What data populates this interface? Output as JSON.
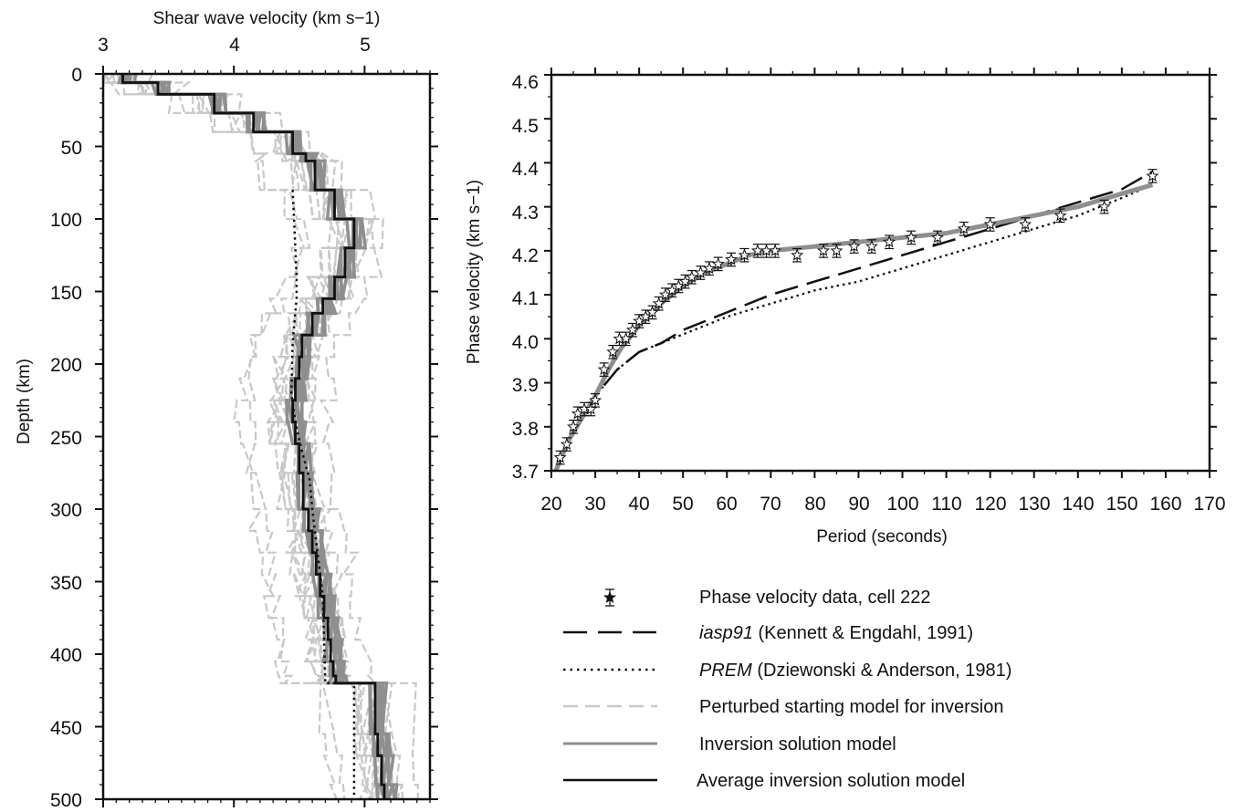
{
  "chart_data": [
    {
      "type": "line",
      "panel": "left",
      "orientation": "depth-profile",
      "xlabel": "Shear wave velocity (km s−1)",
      "ylabel": "Depth (km)",
      "xlim": [
        3,
        5.5
      ],
      "ylim": [
        0,
        500
      ],
      "y_inverted": true,
      "xticks": [
        "3",
        "4",
        "5"
      ],
      "yticks": [
        "0",
        "50",
        "100",
        "150",
        "200",
        "250",
        "300",
        "350",
        "400",
        "450",
        "500"
      ],
      "series": [
        {
          "key": "average",
          "style": "solid-black",
          "x": [
            3.15,
            3.15,
            3.42,
            3.42,
            3.85,
            3.85,
            4.15,
            4.15,
            4.45,
            4.45,
            4.55,
            4.55,
            4.62,
            4.62,
            4.77,
            4.77,
            4.92,
            4.92,
            4.85,
            4.85,
            4.77,
            4.77,
            4.68,
            4.68,
            4.6,
            4.6,
            4.52,
            4.52,
            4.5,
            4.5,
            4.47,
            4.47,
            4.45,
            4.45,
            4.47,
            4.47,
            4.5,
            4.5,
            4.53,
            4.53,
            4.57,
            4.57,
            4.6,
            4.6,
            4.63,
            4.63,
            4.66,
            4.66,
            4.69,
            4.69,
            4.72,
            4.72,
            4.74,
            4.74,
            4.76,
            4.76,
            4.78,
            4.78,
            5.08,
            5.08,
            5.1,
            5.1,
            5.13,
            5.13,
            5.15,
            5.15
          ],
          "y": [
            0,
            6,
            6,
            14,
            14,
            27,
            27,
            40,
            40,
            55,
            55,
            60,
            60,
            80,
            80,
            100,
            100,
            120,
            120,
            140,
            140,
            155,
            155,
            165,
            165,
            180,
            180,
            195,
            195,
            210,
            210,
            225,
            225,
            240,
            240,
            255,
            255,
            275,
            275,
            300,
            300,
            315,
            315,
            330,
            330,
            345,
            345,
            360,
            360,
            375,
            375,
            390,
            390,
            405,
            405,
            415,
            415,
            420,
            420,
            455,
            455,
            470,
            470,
            490,
            490,
            500
          ]
        },
        {
          "key": "prem",
          "style": "dotted-black",
          "x": [
            4.45,
            4.46,
            4.47,
            4.48,
            4.48,
            4.45,
            4.44,
            4.44,
            4.47,
            4.52,
            4.58,
            4.6,
            4.64,
            4.68,
            4.7,
            4.92,
            4.92,
            4.92
          ],
          "y": [
            80,
            100,
            120,
            140,
            155,
            185,
            220,
            220,
            240,
            260,
            280,
            300,
            330,
            360,
            420,
            420,
            460,
            500
          ]
        }
      ]
    },
    {
      "type": "line",
      "panel": "right",
      "xlabel": "Period (seconds)",
      "ylabel": "Phase velocity (km s−1)",
      "xlim": [
        20,
        170
      ],
      "ylim": [
        3.7,
        4.6
      ],
      "xticks": [
        "20",
        "30",
        "40",
        "50",
        "60",
        "70",
        "80",
        "90",
        "100",
        "110",
        "120",
        "130",
        "140",
        "150",
        "160",
        "170"
      ],
      "yticks": [
        "3.7",
        "3.8",
        "3.9",
        "4.0",
        "4.1",
        "4.2",
        "4.3",
        "4.4",
        "4.5",
        "4.6"
      ],
      "series": [
        {
          "key": "data",
          "name": "Phase velocity data, cell 222",
          "x": [
            22,
            23.5,
            25,
            26,
            27.5,
            29,
            30,
            32,
            34,
            35.5,
            37,
            38.5,
            40,
            41.5,
            43,
            44.5,
            46,
            47.5,
            49,
            50.5,
            52,
            54,
            56,
            58,
            61,
            64,
            67,
            69,
            71,
            76,
            82,
            85,
            89,
            93,
            97,
            102,
            108,
            114,
            120,
            128,
            136,
            146,
            157
          ],
          "y": [
            3.73,
            3.76,
            3.8,
            3.83,
            3.84,
            3.84,
            3.86,
            3.93,
            3.97,
            4.0,
            4.0,
            4.02,
            4.04,
            4.05,
            4.06,
            4.08,
            4.1,
            4.11,
            4.12,
            4.13,
            4.14,
            4.15,
            4.16,
            4.17,
            4.18,
            4.19,
            4.2,
            4.2,
            4.2,
            4.19,
            4.2,
            4.2,
            4.21,
            4.21,
            4.22,
            4.23,
            4.23,
            4.25,
            4.26,
            4.26,
            4.28,
            4.3,
            4.37
          ],
          "err": 0.015
        },
        {
          "key": "iasp91",
          "name": "iasp91 (Kennett & Engdahl, 1991)",
          "x": [
            21,
            25,
            30,
            35,
            40,
            45,
            50,
            60,
            70,
            80,
            90,
            100,
            110,
            120,
            130,
            140,
            150,
            157
          ],
          "y": [
            3.7,
            3.79,
            3.87,
            3.93,
            3.97,
            3.99,
            4.02,
            4.06,
            4.1,
            4.13,
            4.16,
            4.19,
            4.22,
            4.25,
            4.28,
            4.31,
            4.34,
            4.38
          ]
        },
        {
          "key": "prem",
          "name": "PREM (Dziewonski & Anderson, 1981)",
          "x": [
            21,
            25,
            30,
            35,
            40,
            45,
            50,
            60,
            70,
            80,
            90,
            100,
            110,
            120,
            130,
            140,
            150,
            157
          ],
          "y": [
            3.7,
            3.79,
            3.87,
            3.93,
            3.97,
            3.99,
            4.01,
            4.05,
            4.08,
            4.11,
            4.13,
            4.16,
            4.19,
            4.22,
            4.25,
            4.28,
            4.32,
            4.35
          ]
        },
        {
          "key": "inversion",
          "name": "Inversion solution model",
          "x": [
            21,
            24,
            27,
            30,
            33,
            36,
            40,
            45,
            50,
            55,
            60,
            65,
            70,
            80,
            90,
            100,
            110,
            120,
            130,
            140,
            150,
            157
          ],
          "y": [
            3.7,
            3.77,
            3.82,
            3.87,
            3.93,
            3.98,
            4.03,
            4.08,
            4.12,
            4.15,
            4.17,
            4.19,
            4.2,
            4.21,
            4.22,
            4.23,
            4.24,
            4.26,
            4.28,
            4.3,
            4.33,
            4.35
          ]
        }
      ]
    }
  ],
  "legend": {
    "position": "bottom-right",
    "items": [
      {
        "key": "data",
        "label": "Phase velocity data, cell 222",
        "italic": "",
        "rest": ""
      },
      {
        "key": "iasp91",
        "label": "",
        "italic": "iasp91",
        "rest": " (Kennett & Engdahl, 1991)"
      },
      {
        "key": "prem",
        "label": "",
        "italic": "PREM",
        "rest": " (Dziewonski & Anderson, 1981)"
      },
      {
        "key": "perturbed",
        "label": "Perturbed starting model for inversion",
        "italic": "",
        "rest": ""
      },
      {
        "key": "inversion",
        "label": "Inversion solution model",
        "italic": "",
        "rest": ""
      },
      {
        "key": "average",
        "label": "Average inversion solution model",
        "italic": "",
        "rest": ""
      }
    ]
  },
  "colors": {
    "perturbed": "#c8c8c8",
    "inversion": "#8f8f8f",
    "average": "#111111",
    "axis": "#111111"
  }
}
